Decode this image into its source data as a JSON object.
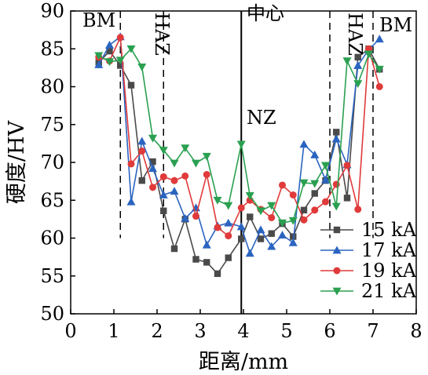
{
  "chart_data": {
    "type": "line",
    "xlabel": "距离/mm",
    "ylabel": "硬度/HV",
    "xlim": [
      0,
      8
    ],
    "ylim": [
      50,
      90
    ],
    "xticks": [
      0,
      1,
      2,
      3,
      4,
      5,
      6,
      7,
      8
    ],
    "yticks": [
      50,
      55,
      60,
      65,
      70,
      75,
      80,
      85,
      90
    ],
    "legend_position": "bottom-right",
    "grid": false,
    "annotations": {
      "bm_left": "BM",
      "haz_left": "HAZ",
      "center": "中心",
      "nz": "NZ",
      "haz_right": "HAZ",
      "bm_right": "BM"
    },
    "reference_lines": [
      {
        "x": 1.15,
        "style": "dashed",
        "y_from": 60,
        "y_to": 90
      },
      {
        "x": 2.15,
        "style": "dashed",
        "y_from": 60,
        "y_to": 90
      },
      {
        "x": 3.95,
        "style": "solid",
        "y_from": 50,
        "y_to": 90
      },
      {
        "x": 6.0,
        "style": "dashed",
        "y_from": 60,
        "y_to": 90
      },
      {
        "x": 7.0,
        "style": "dashed",
        "y_from": 60,
        "y_to": 90
      }
    ],
    "series": [
      {
        "name": "15 kA",
        "color": "#4a4a4a",
        "marker": "square",
        "x": [
          0.65,
          0.9,
          1.15,
          1.4,
          1.65,
          1.9,
          2.15,
          2.4,
          2.65,
          2.9,
          3.15,
          3.4,
          3.65,
          3.95,
          4.15,
          4.4,
          4.65,
          4.9,
          5.15,
          5.4,
          5.65,
          5.9,
          6.15,
          6.4,
          6.65,
          6.9,
          7.15
        ],
        "y": [
          83.2,
          84.7,
          82.8,
          80.2,
          67.6,
          70.1,
          63.6,
          58.6,
          62.5,
          57.2,
          56.8,
          55.3,
          57.4,
          59.9,
          62.8,
          59.9,
          60.6,
          61.9,
          60.2,
          63.7,
          65.9,
          67.6,
          74.0,
          65.3,
          83.9,
          85.0,
          82.3
        ]
      },
      {
        "name": "17 kA",
        "color": "#2a64c0",
        "marker": "triangle-up",
        "x": [
          0.65,
          0.9,
          1.15,
          1.4,
          1.65,
          1.9,
          2.15,
          2.4,
          2.65,
          2.9,
          3.15,
          3.4,
          3.65,
          3.95,
          4.15,
          4.4,
          4.65,
          4.9,
          5.15,
          5.4,
          5.65,
          5.9,
          6.15,
          6.4,
          6.65,
          6.9,
          7.15
        ],
        "y": [
          82.9,
          85.5,
          86.6,
          64.8,
          72.8,
          69.2,
          65.7,
          66.2,
          62.6,
          64.0,
          59.1,
          61.6,
          62.0,
          61.5,
          58.0,
          61.1,
          58.9,
          60.4,
          59.4,
          72.4,
          71.0,
          67.7,
          73.1,
          69.7,
          82.8,
          84.9,
          86.3
        ]
      },
      {
        "name": "19 kA",
        "color": "#e03a3a",
        "marker": "circle",
        "x": [
          0.65,
          0.9,
          1.15,
          1.4,
          1.65,
          1.9,
          2.15,
          2.4,
          2.65,
          2.9,
          3.15,
          3.4,
          3.65,
          3.95,
          4.15,
          4.4,
          4.65,
          4.9,
          5.15,
          5.4,
          5.65,
          5.9,
          6.15,
          6.4,
          6.65,
          6.9,
          7.15
        ],
        "y": [
          83.9,
          83.4,
          86.5,
          69.8,
          71.5,
          66.7,
          68.1,
          67.6,
          68.2,
          62.9,
          68.4,
          61.4,
          60.3,
          64.0,
          65.0,
          63.8,
          62.7,
          67.0,
          65.7,
          62.4,
          63.7,
          64.8,
          67.1,
          69.6,
          63.8,
          85.0,
          80.0
        ]
      },
      {
        "name": "21 kA",
        "color": "#2aa050",
        "marker": "triangle-down",
        "x": [
          0.65,
          0.9,
          1.15,
          1.4,
          1.65,
          1.9,
          2.15,
          2.4,
          2.65,
          2.9,
          3.15,
          3.4,
          3.65,
          3.95,
          4.15,
          4.4,
          4.65,
          4.9,
          5.15,
          5.4,
          5.65,
          5.9,
          6.15,
          6.4,
          6.65,
          6.9,
          7.15
        ],
        "y": [
          84.1,
          83.3,
          83.5,
          85.0,
          82.6,
          73.2,
          71.6,
          69.9,
          71.9,
          69.9,
          70.8,
          65.0,
          64.3,
          72.4,
          65.6,
          63.6,
          64.3,
          62.0,
          62.3,
          67.3,
          67.2,
          69.6,
          64.2,
          83.4,
          80.4,
          84.3,
          82.3
        ]
      }
    ]
  }
}
